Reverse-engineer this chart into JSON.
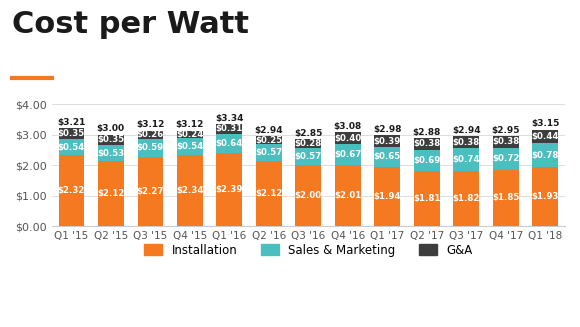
{
  "categories": [
    "Q1 '15",
    "Q2 '15",
    "Q3 '15",
    "Q4 '15",
    "Q1 '16",
    "Q2 '16",
    "Q3 '16",
    "Q4 '16",
    "Q1 '17",
    "Q2 '17",
    "Q3 '17",
    "Q4 '17",
    "Q1 '18"
  ],
  "installation": [
    2.32,
    2.12,
    2.27,
    2.34,
    2.39,
    2.12,
    2.0,
    2.01,
    1.94,
    1.81,
    1.82,
    1.85,
    1.93
  ],
  "sales_marketing": [
    0.54,
    0.53,
    0.59,
    0.54,
    0.64,
    0.57,
    0.57,
    0.67,
    0.65,
    0.69,
    0.74,
    0.72,
    0.78
  ],
  "ga": [
    0.35,
    0.35,
    0.26,
    0.24,
    0.31,
    0.25,
    0.28,
    0.4,
    0.39,
    0.38,
    0.38,
    0.38,
    0.44
  ],
  "totals": [
    3.21,
    3.0,
    3.12,
    3.12,
    3.34,
    2.94,
    2.85,
    3.08,
    2.98,
    2.88,
    2.94,
    2.95,
    3.15
  ],
  "color_installation": "#F47920",
  "color_sales": "#4BBFBF",
  "color_ga": "#3D3D3D",
  "title": "Cost per Watt",
  "title_color": "#1A1A1A",
  "bg_color": "#FFFFFF",
  "ylim": [
    0,
    4.0
  ],
  "yticks": [
    0.0,
    1.0,
    2.0,
    3.0,
    4.0
  ],
  "ytick_labels": [
    "$0.00",
    "$1.00",
    "$2.00",
    "$3.00",
    "$4.00"
  ],
  "accent_line_color": "#F47920",
  "legend_labels": [
    "Installation",
    "Sales & Marketing",
    "G&A"
  ]
}
